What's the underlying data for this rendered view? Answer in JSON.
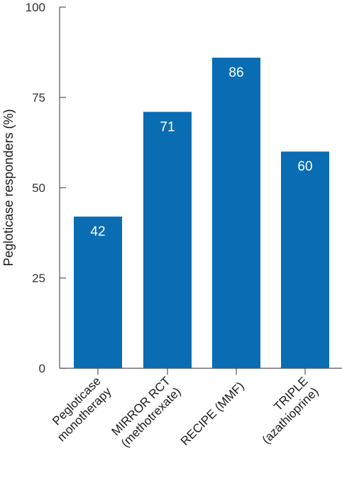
{
  "chart_data": {
    "type": "bar",
    "title": "",
    "xlabel": "",
    "ylabel": "Pegloticase responders (%)",
    "ylim": [
      0,
      100
    ],
    "yticks": [
      0,
      25,
      50,
      75,
      100
    ],
    "categories": [
      [
        "Pegloticase",
        "monotherapy"
      ],
      [
        "MIRROR RCT",
        "(methotrexate)"
      ],
      [
        "RECIPE (MMF)"
      ],
      [
        "TRIPLE",
        "(azathioprine)"
      ]
    ],
    "values": [
      42,
      71,
      86,
      60
    ],
    "data_labels": [
      "42",
      "71",
      "86",
      "60"
    ],
    "bar_color": "#0a6db3",
    "axis_color": "#555555",
    "grid": false,
    "legend": "none"
  }
}
